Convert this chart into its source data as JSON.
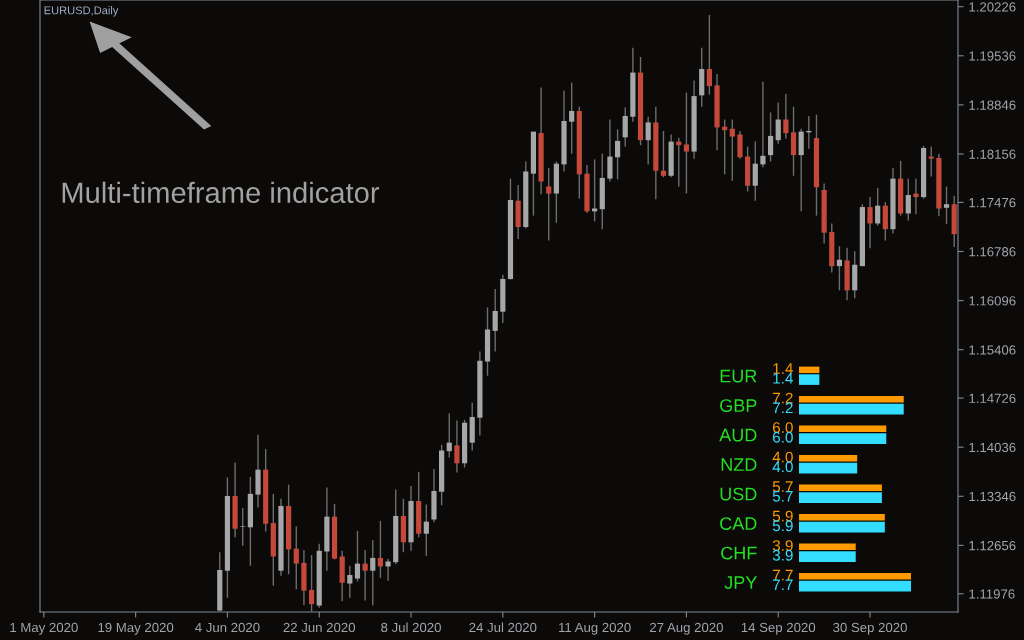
{
  "chart_data": [
    {
      "type": "candlestick",
      "title": "EURUSD,Daily",
      "annotations": [
        "Multi-timeframe indicator"
      ],
      "categories": [
        "1 May 2020",
        null,
        null,
        null,
        null,
        null,
        null,
        null,
        null,
        null,
        null,
        null,
        "19 May 2020",
        null,
        null,
        null,
        null,
        null,
        null,
        null,
        null,
        null,
        null,
        null,
        "4 Jun 2020",
        null,
        null,
        null,
        null,
        null,
        null,
        null,
        null,
        null,
        null,
        null,
        "22 Jun 2020",
        null,
        null,
        null,
        null,
        null,
        null,
        null,
        null,
        null,
        null,
        null,
        "8 Jul 2020",
        null,
        null,
        null,
        null,
        null,
        null,
        null,
        null,
        null,
        null,
        null,
        "24 Jul 2020",
        null,
        null,
        null,
        null,
        null,
        null,
        null,
        null,
        null,
        null,
        null,
        "11 Aug 2020",
        null,
        null,
        null,
        null,
        null,
        null,
        null,
        null,
        null,
        null,
        null,
        "27 Aug 2020",
        null,
        null,
        null,
        null,
        null,
        null,
        null,
        null,
        null,
        null,
        null,
        "14 Sep 2020",
        null,
        null,
        null,
        null,
        null,
        null,
        null,
        null,
        null,
        null,
        null,
        "30 Sep 2020",
        null,
        null,
        null,
        null,
        null,
        null,
        null,
        null,
        null,
        null,
        null
      ],
      "ohlc": [
        null,
        null,
        null,
        null,
        null,
        null,
        null,
        null,
        null,
        null,
        null,
        null,
        null,
        null,
        null,
        null,
        null,
        null,
        null,
        null,
        null,
        null,
        null,
        [
          1.1174,
          1.1256,
          1.1173,
          1.1231
        ],
        [
          1.123,
          1.1361,
          1.1192,
          1.1335
        ],
        [
          1.1335,
          1.1382,
          1.1277,
          1.1289
        ],
        [
          1.1292,
          1.1318,
          1.1265,
          1.1292
        ],
        [
          1.1291,
          1.1362,
          1.1237,
          1.1338
        ],
        [
          1.1337,
          1.1421,
          1.1319,
          1.1372
        ],
        [
          1.1372,
          1.1401,
          1.1285,
          1.1296
        ],
        [
          1.1297,
          1.1338,
          1.1209,
          1.125
        ],
        [
          1.123,
          1.1331,
          1.1223,
          1.1321
        ],
        [
          1.1321,
          1.1351,
          1.1225,
          1.126
        ],
        [
          1.1261,
          1.1292,
          1.1204,
          1.124
        ],
        [
          1.1241,
          1.1259,
          1.1182,
          1.1202
        ],
        [
          1.1203,
          1.1252,
          1.1173,
          1.1183
        ],
        [
          1.1181,
          1.1268,
          1.1178,
          1.1258
        ],
        [
          1.1257,
          1.1347,
          1.123,
          1.1306
        ],
        [
          1.1306,
          1.1324,
          1.1246,
          1.1247
        ],
        [
          1.125,
          1.1258,
          1.1187,
          1.1213
        ],
        [
          1.1212,
          1.1237,
          1.1192,
          1.1224
        ],
        [
          1.1219,
          1.1286,
          1.1215,
          1.124
        ],
        [
          1.124,
          1.1259,
          1.1188,
          1.123
        ],
        [
          1.123,
          1.1273,
          1.1181,
          1.1248
        ],
        [
          1.1248,
          1.13,
          1.122,
          1.1236
        ],
        [
          1.1236,
          1.1247,
          1.1216,
          1.1243
        ],
        [
          1.1242,
          1.1344,
          1.1239,
          1.1307
        ],
        [
          1.1307,
          1.1331,
          1.1256,
          1.127
        ],
        [
          1.127,
          1.1349,
          1.1258,
          1.1328
        ],
        [
          1.1328,
          1.1369,
          1.1277,
          1.1282
        ],
        [
          1.1282,
          1.1323,
          1.1251,
          1.1299
        ],
        [
          1.1302,
          1.1373,
          1.1298,
          1.1342
        ],
        [
          1.1341,
          1.1407,
          1.1322,
          1.1399
        ],
        [
          1.1398,
          1.1451,
          1.1389,
          1.141
        ],
        [
          1.1406,
          1.1441,
          1.1368,
          1.1381
        ],
        [
          1.1381,
          1.1442,
          1.1375,
          1.1438
        ],
        [
          1.141,
          1.1466,
          1.1399,
          1.1446
        ],
        [
          1.1445,
          1.1538,
          1.142,
          1.1525
        ],
        [
          1.1524,
          1.16,
          1.1504,
          1.1569
        ],
        [
          1.1567,
          1.1626,
          1.1538,
          1.1595
        ],
        [
          1.1594,
          1.1646,
          1.1578,
          1.164
        ],
        [
          1.164,
          1.1781,
          1.1639,
          1.1751
        ],
        [
          1.175,
          1.1772,
          1.1696,
          1.1713
        ],
        [
          1.1713,
          1.1805,
          1.1711,
          1.1791
        ],
        [
          1.1788,
          1.1847,
          1.1729,
          1.1847
        ],
        [
          1.1845,
          1.1909,
          1.1759,
          1.1777
        ],
        [
          1.177,
          1.1796,
          1.1694,
          1.176
        ],
        [
          1.176,
          1.1805,
          1.1719,
          1.1802
        ],
        [
          1.1801,
          1.1905,
          1.1791,
          1.1862
        ],
        [
          1.1861,
          1.1916,
          1.1816,
          1.1876
        ],
        [
          1.1876,
          1.1882,
          1.1753,
          1.1787
        ],
        [
          1.1788,
          1.18,
          1.1733,
          1.1735
        ],
        [
          1.1735,
          1.1808,
          1.1721,
          1.1739
        ],
        [
          1.1738,
          1.1816,
          1.171,
          1.1782
        ],
        [
          1.1781,
          1.1864,
          1.1777,
          1.1812
        ],
        [
          1.1811,
          1.185,
          1.178,
          1.1834
        ],
        [
          1.1839,
          1.1881,
          1.1826,
          1.1869
        ],
        [
          1.1868,
          1.1965,
          1.1861,
          1.193
        ],
        [
          1.193,
          1.1952,
          1.1828,
          1.1835
        ],
        [
          1.1835,
          1.1868,
          1.1801,
          1.186
        ],
        [
          1.186,
          1.1882,
          1.1752,
          1.1792
        ],
        [
          1.1792,
          1.1848,
          1.1783,
          1.1785
        ],
        [
          1.1785,
          1.1843,
          1.1783,
          1.1833
        ],
        [
          1.1833,
          1.1838,
          1.177,
          1.1828
        ],
        [
          1.1829,
          1.1902,
          1.176,
          1.1819
        ],
        [
          1.1819,
          1.1919,
          1.1809,
          1.1897
        ],
        [
          1.1898,
          1.1965,
          1.1882,
          1.1935
        ],
        [
          1.1935,
          1.2011,
          1.1899,
          1.1911
        ],
        [
          1.1912,
          1.1928,
          1.1821,
          1.1853
        ],
        [
          1.1854,
          1.1864,
          1.1787,
          1.1849
        ],
        [
          1.1851,
          1.1864,
          1.1778,
          1.184
        ],
        [
          1.1843,
          1.1848,
          1.1809,
          1.1811
        ],
        [
          1.1812,
          1.1826,
          1.1763,
          1.1771
        ],
        [
          1.1771,
          1.1833,
          1.175,
          1.1802
        ],
        [
          1.1801,
          1.1917,
          1.1797,
          1.1813
        ],
        [
          1.1814,
          1.1874,
          1.1805,
          1.1841
        ],
        [
          1.1835,
          1.1888,
          1.183,
          1.1864
        ],
        [
          1.1864,
          1.19,
          1.1837,
          1.1845
        ],
        [
          1.1846,
          1.1882,
          1.1785,
          1.1814
        ],
        [
          1.1814,
          1.1851,
          1.1735,
          1.1847
        ],
        [
          1.1846,
          1.1869,
          1.1823,
          1.1848
        ],
        [
          1.1838,
          1.1871,
          1.1729,
          1.1769
        ],
        [
          1.1765,
          1.1774,
          1.169,
          1.1705
        ],
        [
          1.1706,
          1.1718,
          1.1649,
          1.1658
        ],
        [
          1.1658,
          1.1686,
          1.1624,
          1.1667
        ],
        [
          1.1666,
          1.1684,
          1.161,
          1.1624
        ],
        [
          1.1624,
          1.1679,
          1.1613,
          1.166
        ],
        [
          1.1658,
          1.1745,
          1.1658,
          1.1741
        ],
        [
          1.1741,
          1.1755,
          1.1683,
          1.1718
        ],
        [
          1.1718,
          1.1768,
          1.1715,
          1.1743
        ],
        [
          1.1743,
          1.1748,
          1.1694,
          1.171
        ],
        [
          1.171,
          1.1796,
          1.1704,
          1.1781
        ],
        [
          1.1781,
          1.1806,
          1.1729,
          1.1732
        ],
        [
          1.1732,
          1.1781,
          1.1722,
          1.1758
        ],
        [
          1.176,
          1.1781,
          1.1731,
          1.1755
        ],
        [
          1.1755,
          1.1827,
          1.1753,
          1.1824
        ],
        [
          1.1812,
          1.1826,
          1.1784,
          1.1809
        ],
        [
          1.181,
          1.1816,
          1.1728,
          1.1739
        ],
        [
          1.174,
          1.177,
          1.1717,
          1.1745
        ],
        [
          1.1745,
          1.1757,
          1.1685,
          1.1703
        ]
      ],
      "colors": [
        null,
        null,
        null,
        null,
        null,
        null,
        null,
        null,
        null,
        null,
        null,
        null,
        null,
        null,
        null,
        null,
        null,
        null,
        null,
        null,
        null,
        null,
        null,
        "#a5a7a9",
        "#a5a7a9",
        "#c4493a",
        "#a5a7a9",
        "#a5a7a9",
        "#a5a7a9",
        "#c4493a",
        "#c4493a",
        "#a5a7a9",
        "#c4493a",
        "#c4493a",
        "#c4493a",
        "#c4493a",
        "#a5a7a9",
        "#a5a7a9",
        "#c4493a",
        "#c4493a",
        "#a5a7a9",
        "#a5a7a9",
        "#c4493a",
        "#a5a7a9",
        "#c4493a",
        "#a5a7a9",
        "#a5a7a9",
        "#c4493a",
        "#a5a7a9",
        "#c4493a",
        "#a5a7a9",
        "#a5a7a9",
        "#a5a7a9",
        "#a5a7a9",
        "#c4493a",
        "#a5a7a9",
        "#a5a7a9",
        "#a5a7a9",
        "#a5a7a9",
        "#a5a7a9",
        "#a5a7a9",
        "#a5a7a9",
        "#c4493a",
        "#a5a7a9",
        "#a5a7a9",
        "#c4493a",
        "#c4493a",
        "#a5a7a9",
        "#a5a7a9",
        "#a5a7a9",
        "#c4493a",
        "#c4493a",
        "#a5a7a9",
        "#a5a7a9",
        "#a5a7a9",
        "#a5a7a9",
        "#a5a7a9",
        "#a5a7a9",
        "#c4493a",
        "#a5a7a9",
        "#c4493a",
        "#c4493a",
        "#a5a7a9",
        "#c4493a",
        "#c4493a",
        "#a5a7a9",
        "#a5a7a9",
        "#c4493a",
        "#c4493a",
        "#c4493a",
        "#c4493a",
        "#c4493a",
        "#c4493a",
        "#a5a7a9",
        "#a5a7a9",
        "#a5a7a9",
        "#a5a7a9",
        "#c4493a",
        "#c4493a",
        "#a5a7a9",
        "#a5a7a9",
        "#c4493a",
        "#c4493a",
        "#c4493a",
        "#a5a7a9",
        "#c4493a",
        "#a5a7a9",
        "#a5a7a9",
        "#c4493a",
        "#a5a7a9",
        "#c4493a",
        "#a5a7a9",
        "#c4493a",
        "#a5a7a9",
        "#c4493a",
        "#a5a7a9",
        "#c4493a",
        "#c4493a",
        "#a5a7a9",
        "#c4493a"
      ],
      "ylim": [
        1.1172,
        1.2032
      ],
      "yticks": [
        1.11976,
        1.12656,
        1.13346,
        1.14036,
        1.14726,
        1.15406,
        1.16096,
        1.16786,
        1.17476,
        1.18156,
        1.18846,
        1.19536,
        1.20226
      ]
    },
    {
      "type": "bar",
      "orientation": "horizontal",
      "categories": [
        "EUR",
        "GBP",
        "AUD",
        "NZD",
        "USD",
        "CAD",
        "CHF",
        "JPY"
      ],
      "series": [
        {
          "color": "#ff9900",
          "values": [
            1.4,
            7.2,
            6.0,
            4.0,
            5.7,
            5.9,
            3.9,
            7.7
          ],
          "value_labels": [
            "1.4",
            "7.2",
            "6.0",
            "4.0",
            "5.7",
            "5.9",
            "3.9",
            "7.7"
          ]
        },
        {
          "color": "#33ddff",
          "values": [
            1.4,
            7.2,
            6.0,
            4.0,
            5.7,
            5.9,
            3.9,
            7.7
          ],
          "value_labels": [
            "1.4",
            "7.2",
            "6.0",
            "4.0",
            "5.7",
            "5.9",
            "3.9",
            "7.7"
          ]
        }
      ],
      "tick_labels": "y"
    }
  ]
}
